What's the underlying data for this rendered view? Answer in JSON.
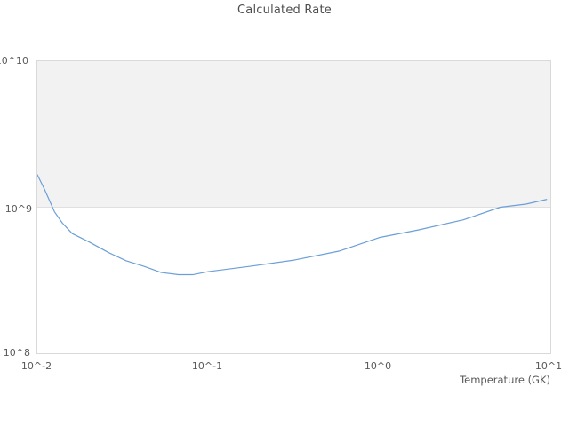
{
  "chart_data": {
    "type": "line",
    "title": "Calculated Rate",
    "xlabel": "Temperature (GK)",
    "ylabel": "",
    "x_scale": "log",
    "y_scale": "log",
    "xlim": [
      0.01,
      10
    ],
    "ylim": [
      100000000.0,
      10000000000.0
    ],
    "x_tick_labels": [
      "10^-2",
      "10^-1",
      "10^0",
      "10^1"
    ],
    "y_tick_labels": [
      "10^10",
      "10^9",
      "10^8"
    ],
    "gridlines_y": [
      1000000000.0
    ],
    "legend": "none",
    "shaded_band": {
      "y_from": 1000000000.0,
      "y_to": 10000000000.0
    },
    "series": [
      {
        "name": "Calculated Rate",
        "x": [
          0.01,
          0.011,
          0.0126,
          0.014,
          0.016,
          0.02,
          0.026,
          0.033,
          0.042,
          0.053,
          0.067,
          0.081,
          0.1,
          0.176,
          0.32,
          0.58,
          1.0,
          1.7,
          3.1,
          5.1,
          7.2,
          9.5
        ],
        "y": [
          1670000000.0,
          1330000000.0,
          930000000.0,
          780000000.0,
          660000000.0,
          580000000.0,
          490000000.0,
          430000000.0,
          394000000.0,
          357000000.0,
          345000000.0,
          345000000.0,
          362000000.0,
          394000000.0,
          435000000.0,
          500000000.0,
          620000000.0,
          700000000.0,
          820000000.0,
          1000000000.0,
          1050000000.0,
          1130000000.0
        ]
      }
    ]
  },
  "colors": {
    "background": "#ffffff",
    "band_fill": "#f2f2f3",
    "gridline": "#e0e0e0",
    "plot_border": "#d9d9d9",
    "tick_text": "#595959",
    "title_text": "#4d4d4d",
    "line": "#6b9fd8"
  }
}
